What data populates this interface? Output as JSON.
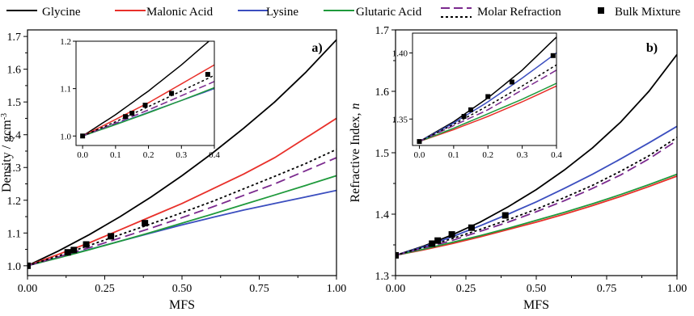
{
  "legend": {
    "entries": [
      {
        "label": "Glycine",
        "color": "#000000",
        "style": "solid"
      },
      {
        "label": "Malonic Acid",
        "color": "#e8302a",
        "style": "solid"
      },
      {
        "label": "Lysine",
        "color": "#3b4ebf",
        "style": "solid"
      },
      {
        "label": "Glutaric Acid",
        "color": "#1f9a3c",
        "style": "solid"
      },
      {
        "label": "Molar Refraction",
        "color": "#7b2a8e",
        "style": "longdash"
      },
      {
        "label": "",
        "color": "#000000",
        "style": "dotted"
      },
      {
        "label": "Bulk Mixture",
        "color": "#000000",
        "style": "square-marker"
      }
    ]
  },
  "chart_data": [
    {
      "type": "line",
      "panel_label": "a)",
      "xlabel": "MFS",
      "ylabel": "Density / gcm",
      "ylabel_sup": "-3",
      "xlim": [
        0,
        1
      ],
      "ylim": [
        0.97,
        1.72
      ],
      "xticks": [
        "0.00",
        "0.25",
        "0.50",
        "0.75",
        "1.00"
      ],
      "yticks": [
        "1.0",
        "1.1",
        "1.2",
        "1.3",
        "1.4",
        "1.5",
        "1.6",
        "1.7"
      ],
      "series": [
        {
          "name": "Glycine",
          "color": "#000000",
          "dash": "",
          "x": [
            0,
            0.1,
            0.2,
            0.3,
            0.4,
            0.5,
            0.6,
            0.7,
            0.8,
            0.9,
            1.0
          ],
          "y": [
            1.0,
            1.045,
            1.095,
            1.15,
            1.21,
            1.275,
            1.345,
            1.42,
            1.5,
            1.59,
            1.69
          ]
        },
        {
          "name": "Malonic Acid",
          "color": "#e8302a",
          "dash": "",
          "x": [
            0,
            0.1,
            0.2,
            0.3,
            0.4,
            0.5,
            0.6,
            0.7,
            0.8,
            0.9,
            1.0
          ],
          "y": [
            1.0,
            1.035,
            1.07,
            1.11,
            1.15,
            1.19,
            1.235,
            1.28,
            1.33,
            1.39,
            1.45
          ]
        },
        {
          "name": "Lysine",
          "color": "#3b4ebf",
          "dash": "",
          "x": [
            0,
            0.1,
            0.2,
            0.3,
            0.4,
            0.5,
            0.6,
            0.7,
            0.8,
            0.9,
            1.0
          ],
          "y": [
            1.0,
            1.025,
            1.05,
            1.075,
            1.1,
            1.125,
            1.148,
            1.17,
            1.19,
            1.21,
            1.23
          ]
        },
        {
          "name": "Glutaric Acid",
          "color": "#1f9a3c",
          "dash": "",
          "x": [
            0,
            0.1,
            0.2,
            0.3,
            0.4,
            0.5,
            0.6,
            0.7,
            0.8,
            0.9,
            1.0
          ],
          "y": [
            1.0,
            1.024,
            1.049,
            1.075,
            1.102,
            1.13,
            1.158,
            1.187,
            1.216,
            1.245,
            1.275
          ]
        },
        {
          "name": "Molar Refraction",
          "color": "#7b2a8e",
          "dash": "12 6",
          "x": [
            0,
            0.1,
            0.2,
            0.3,
            0.4,
            0.5,
            0.6,
            0.7,
            0.8,
            0.9,
            1.0
          ],
          "y": [
            1.0,
            1.027,
            1.055,
            1.085,
            1.115,
            1.147,
            1.18,
            1.215,
            1.25,
            1.29,
            1.33
          ]
        },
        {
          "name": "",
          "color": "#000000",
          "dash": "3 3",
          "x": [
            0,
            0.1,
            0.2,
            0.3,
            0.4,
            0.5,
            0.6,
            0.7,
            0.8,
            0.9,
            1.0
          ],
          "y": [
            1.0,
            1.03,
            1.062,
            1.095,
            1.128,
            1.162,
            1.197,
            1.235,
            1.273,
            1.312,
            1.355
          ]
        }
      ],
      "markers": {
        "name": "Bulk Mixture",
        "x": [
          0,
          0.13,
          0.15,
          0.19,
          0.27,
          0.38
        ],
        "y": [
          1.0,
          1.041,
          1.048,
          1.065,
          1.09,
          1.13
        ]
      },
      "inset": {
        "xlim": [
          -0.02,
          0.4
        ],
        "ylim": [
          0.98,
          1.2
        ],
        "xticks": [
          "0.0",
          "0.1",
          "0.2",
          "0.3",
          "0.4"
        ],
        "yticks": [
          "1.0",
          "1.1",
          "1.2"
        ]
      }
    },
    {
      "type": "line",
      "panel_label": "b)",
      "xlabel": "MFS",
      "ylabel": "Refractive Index, ",
      "ylabel_italic": "n",
      "xlim": [
        0,
        1
      ],
      "ylim": [
        1.3,
        1.7
      ],
      "xticks": [
        "0.00",
        "0.25",
        "0.50",
        "0.75",
        "1.00"
      ],
      "yticks": [
        "1.3",
        "1.4",
        "1.5",
        "1.6",
        "1.7"
      ],
      "series": [
        {
          "name": "Glycine",
          "color": "#000000",
          "dash": "",
          "x": [
            0,
            0.1,
            0.2,
            0.3,
            0.4,
            0.5,
            0.6,
            0.7,
            0.8,
            0.9,
            1.0
          ],
          "y": [
            1.333,
            1.348,
            1.366,
            1.387,
            1.412,
            1.44,
            1.472,
            1.508,
            1.55,
            1.6,
            1.66
          ]
        },
        {
          "name": "Malonic Acid",
          "color": "#e8302a",
          "dash": "",
          "x": [
            0,
            0.1,
            0.2,
            0.3,
            0.4,
            0.5,
            0.6,
            0.7,
            0.8,
            0.9,
            1.0
          ],
          "y": [
            1.333,
            1.342,
            1.352,
            1.363,
            1.375,
            1.387,
            1.4,
            1.414,
            1.429,
            1.445,
            1.462
          ]
        },
        {
          "name": "Lysine",
          "color": "#3b4ebf",
          "dash": "",
          "x": [
            0,
            0.1,
            0.2,
            0.3,
            0.4,
            0.5,
            0.6,
            0.7,
            0.8,
            0.9,
            1.0
          ],
          "y": [
            1.333,
            1.347,
            1.363,
            1.381,
            1.4,
            1.42,
            1.442,
            1.465,
            1.49,
            1.516,
            1.543
          ]
        },
        {
          "name": "Glutaric Acid",
          "color": "#1f9a3c",
          "dash": "",
          "x": [
            0,
            0.1,
            0.2,
            0.3,
            0.4,
            0.5,
            0.6,
            0.7,
            0.8,
            0.9,
            1.0
          ],
          "y": [
            1.333,
            1.343,
            1.354,
            1.365,
            1.377,
            1.39,
            1.403,
            1.417,
            1.432,
            1.448,
            1.465
          ]
        },
        {
          "name": "Molar Refraction",
          "color": "#7b2a8e",
          "dash": "12 6",
          "x": [
            0,
            0.1,
            0.2,
            0.3,
            0.4,
            0.5,
            0.6,
            0.7,
            0.8,
            0.9,
            1.0
          ],
          "y": [
            1.333,
            1.345,
            1.357,
            1.372,
            1.387,
            1.404,
            1.422,
            1.442,
            1.464,
            1.49,
            1.52
          ]
        },
        {
          "name": "",
          "color": "#000000",
          "dash": "3 3",
          "x": [
            0,
            0.1,
            0.2,
            0.3,
            0.4,
            0.5,
            0.6,
            0.7,
            0.8,
            0.9,
            1.0
          ],
          "y": [
            1.333,
            1.346,
            1.36,
            1.375,
            1.391,
            1.408,
            1.427,
            1.447,
            1.47,
            1.495,
            1.525
          ]
        }
      ],
      "markers": {
        "name": "Bulk Mixture",
        "x": [
          0,
          0.13,
          0.15,
          0.2,
          0.27,
          0.39
        ],
        "y": [
          1.333,
          1.352,
          1.357,
          1.367,
          1.378,
          1.398
        ]
      },
      "inset": {
        "xlim": [
          -0.02,
          0.4
        ],
        "ylim": [
          1.33,
          1.415
        ],
        "xticks": [
          "0.0",
          "0.1",
          "0.2",
          "0.3",
          "0.4"
        ],
        "yticks": [
          "1.35",
          "1.40"
        ]
      }
    }
  ]
}
